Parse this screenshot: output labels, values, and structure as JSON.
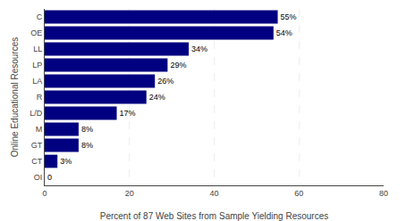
{
  "chart_data": {
    "type": "bar",
    "orientation": "horizontal",
    "categories": [
      "OI",
      "CT",
      "GT",
      "M",
      "L/D",
      "R",
      "LA",
      "LP",
      "LL",
      "OE",
      "C"
    ],
    "values": [
      0,
      3,
      8,
      8,
      17,
      24,
      26,
      29,
      34,
      54,
      55
    ],
    "value_labels": [
      "0",
      "3%",
      "8%",
      "8%",
      "17%",
      "24%",
      "26%",
      "29%",
      "34%",
      "54%",
      "55%"
    ],
    "data_labels": true,
    "color": "#000080",
    "xlabel": "Percent of 87 Web Sites from Sample Yielding Resources",
    "ylabel": "Online Educational Resources",
    "xlim": [
      0,
      80
    ],
    "xticks": [
      0,
      20,
      40,
      60,
      80
    ],
    "grid": true
  }
}
